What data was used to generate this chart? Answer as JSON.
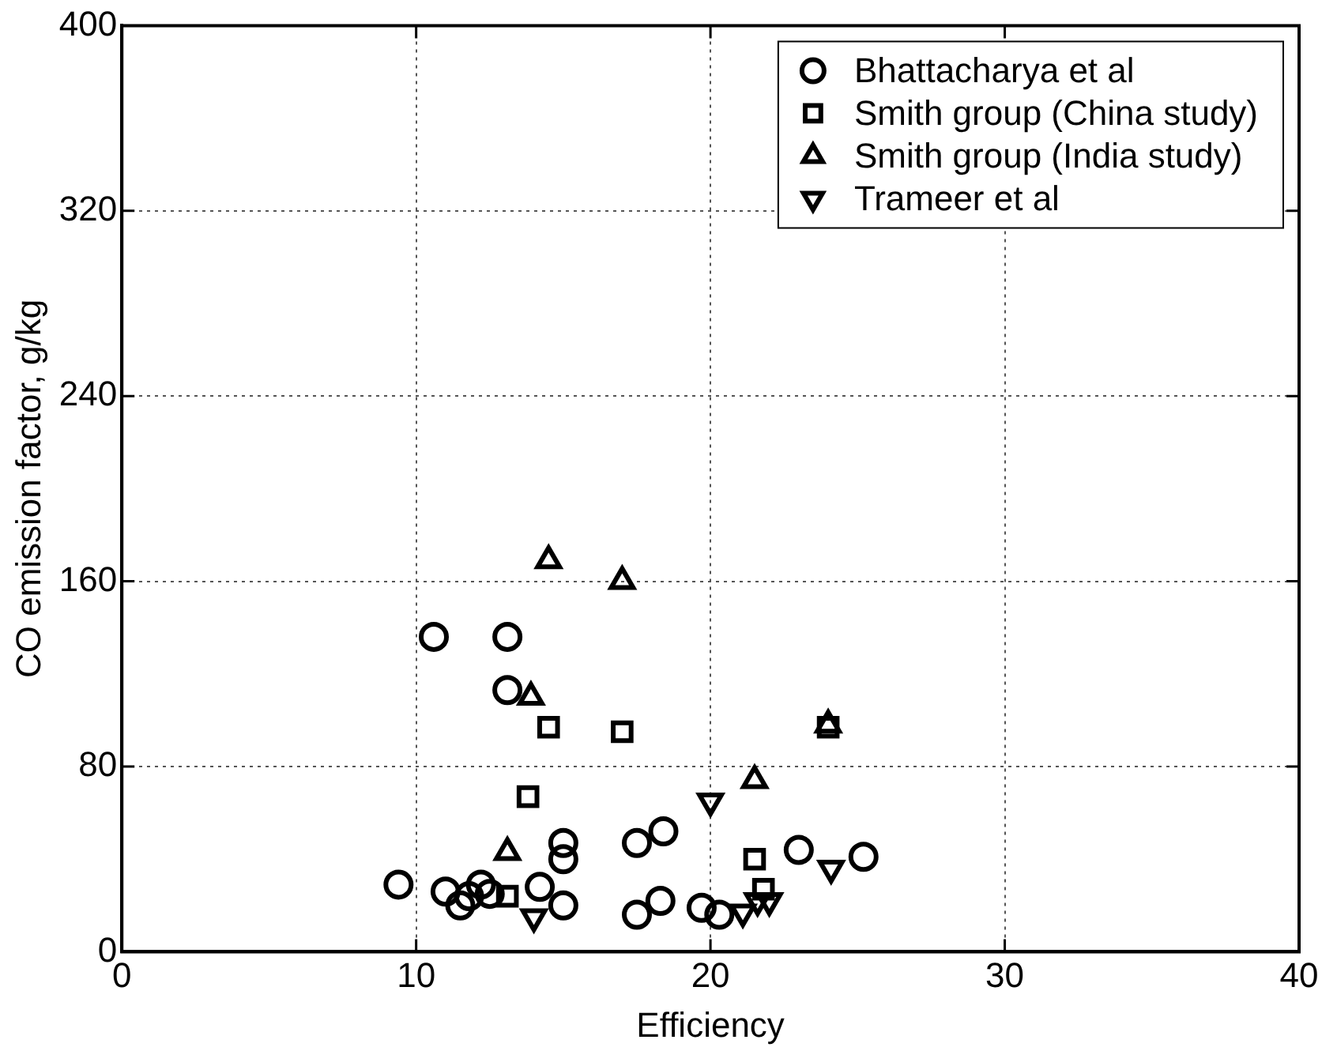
{
  "chart_data": {
    "type": "scatter",
    "xlabel": "Efficiency",
    "ylabel": "CO emission factor, g/kg",
    "xlim": [
      0,
      40
    ],
    "xticks": [
      0,
      10,
      20,
      30,
      40
    ],
    "ylim": [
      0,
      400
    ],
    "yticks": [
      0,
      80,
      160,
      240,
      320,
      400
    ],
    "grid": true,
    "legend": "top right",
    "series": [
      {
        "name": "Bhattacharya et al",
        "color": "#000000",
        "marker": "circle",
        "x": [
          9.4,
          10.6,
          13.1,
          13.1,
          11.0,
          11.5,
          11.8,
          12.2,
          12.5,
          15.0,
          15.0,
          15.0,
          14.2,
          17.5,
          18.4,
          17.5,
          18.3,
          19.7,
          20.3,
          23.0,
          25.2
        ],
        "values": [
          29,
          136,
          136,
          113,
          26,
          20,
          24,
          29,
          25,
          47,
          40,
          20,
          28,
          47,
          52,
          16,
          22,
          19,
          16,
          44,
          41
        ]
      },
      {
        "name": "Smith group (China study)",
        "color": "#000000",
        "marker": "square",
        "x": [
          14.5,
          17.0,
          13.8,
          13.1,
          21.5,
          24.0,
          21.8
        ],
        "values": [
          97,
          95,
          67,
          24,
          40,
          97,
          27
        ]
      },
      {
        "name": "Smith group (India study)",
        "color": "#000000",
        "marker": "triangle",
        "x": [
          14.5,
          17.0,
          13.9,
          13.1,
          21.5,
          24.0
        ],
        "values": [
          169,
          160,
          110,
          43,
          74,
          98
        ]
      },
      {
        "name": "Trameer et al",
        "color": "#000000",
        "marker": "triangle-down",
        "x": [
          20.0,
          24.1,
          21.1,
          22.0,
          14.0,
          21.6
        ],
        "values": [
          65,
          36,
          17,
          22,
          15,
          22
        ]
      }
    ]
  }
}
